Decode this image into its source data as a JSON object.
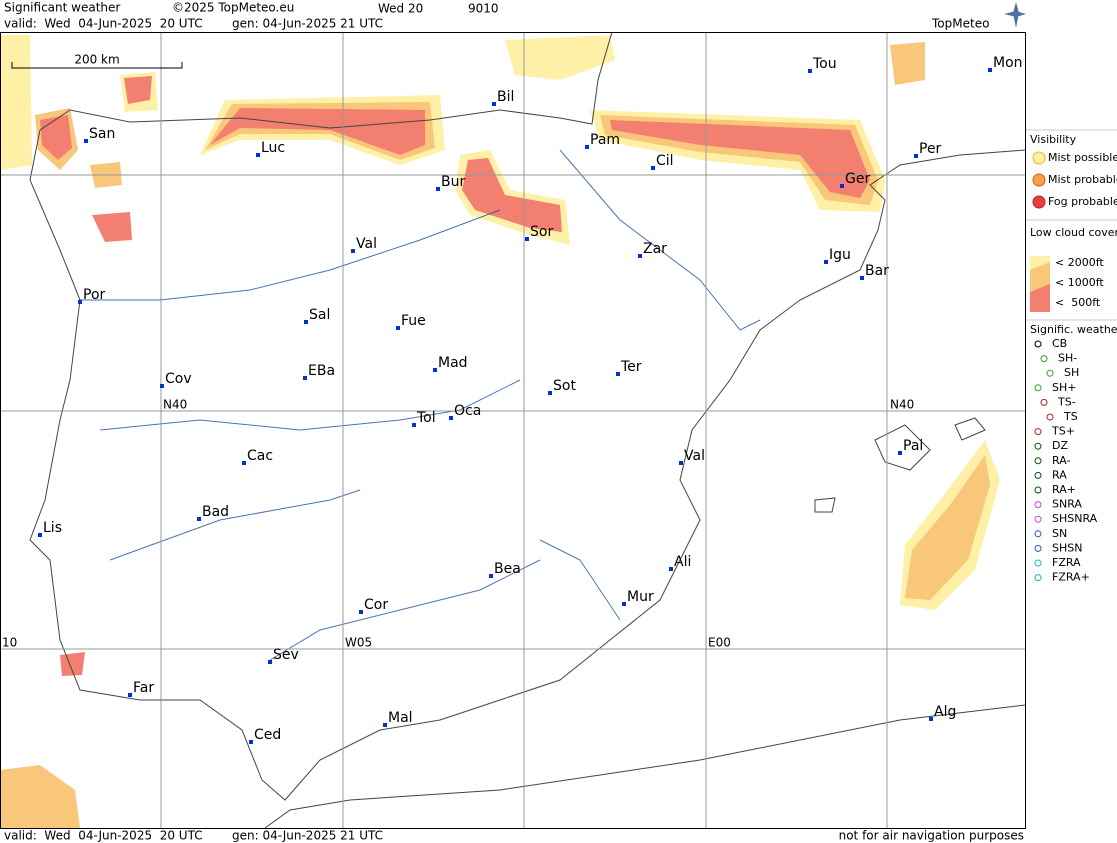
{
  "header": {
    "title": "Significant weather",
    "copyright": "©2025 TopMeteo.eu",
    "run": "Wed 20",
    "code": "9010",
    "valid": "valid:  Wed  04-Jun-2025  20 UTC",
    "generated": "gen: 04-Jun-2025 21 UTC",
    "logo": "TopMeteo"
  },
  "scale": "200 km",
  "grid_labels": [
    "N40",
    "N40",
    "W05",
    "E00",
    "10"
  ],
  "cities": [
    "San",
    "Luc",
    "Bil",
    "Pam",
    "Cil",
    "Tou",
    "Mon",
    "Per",
    "Ger",
    "Bur",
    "Sor",
    "Zar",
    "Val",
    "Igu",
    "Bar",
    "Por",
    "Sal",
    "Fue",
    "Mad",
    "EBa",
    "Cov",
    "Ter",
    "Sot",
    "Tol",
    "Oca",
    "Val",
    "Pal",
    "Cac",
    "Bad",
    "Lis",
    "Bea",
    "Ali",
    "Mur",
    "Cor",
    "Sev",
    "Far",
    "Ced",
    "Mal",
    "Alg"
  ],
  "legend": {
    "visibility": {
      "title": "Visibility",
      "items": [
        "Mist possible",
        "Mist probable",
        "Fog probable"
      ]
    },
    "low_cloud": {
      "title": "Low cloud cover probable",
      "items": [
        "< 2000ft",
        "< 1000ft",
        "<  500ft"
      ]
    },
    "weather": {
      "title": "Signific. weather",
      "items": [
        "CB",
        "SH-",
        "SH",
        "SH+",
        "TS-",
        "TS",
        "TS+",
        "DZ",
        "RA-",
        "RA",
        "RA+",
        "SNRA",
        "SHSNRA",
        "SN",
        "SHSN",
        "FZRA",
        "FZRA+"
      ]
    }
  },
  "footer": {
    "valid": "valid:  Wed  04-Jun-2025  20 UTC",
    "generated": "gen: 04-Jun-2025 21 UTC",
    "disclaimer": "not for air navigation purposes"
  }
}
